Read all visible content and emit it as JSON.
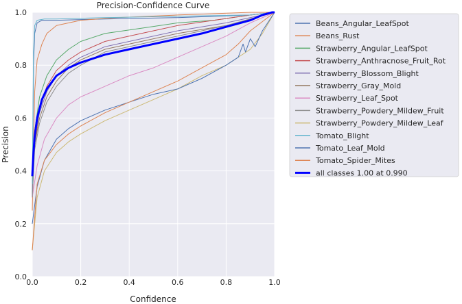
{
  "chart_data": {
    "type": "line",
    "title": "Precision-Confidence Curve",
    "xlabel": "Confidence",
    "ylabel": "Precision",
    "xlim": [
      0.0,
      1.0
    ],
    "ylim": [
      0.0,
      1.0
    ],
    "xticks": [
      "0.0",
      "0.2",
      "0.4",
      "0.6",
      "0.8",
      "1.0"
    ],
    "yticks": [
      "0.0",
      "0.2",
      "0.4",
      "0.6",
      "0.8",
      "1.0"
    ],
    "grid": true,
    "legend_position": "outside-right",
    "series": [
      {
        "name": "Beans_Angular_LeafSpot",
        "color": "#4c72b0",
        "width": 1,
        "x": [
          0.0,
          0.005,
          0.01,
          0.02,
          0.04,
          0.1,
          0.3,
          0.6,
          0.9,
          1.0
        ],
        "y": [
          0.3,
          0.8,
          0.92,
          0.96,
          0.97,
          0.97,
          0.975,
          0.98,
          0.99,
          1.0
        ]
      },
      {
        "name": "Beans_Rust",
        "color": "#dd8452",
        "width": 1,
        "x": [
          0.0,
          0.01,
          0.02,
          0.04,
          0.06,
          0.1,
          0.2,
          0.35,
          0.6,
          0.9,
          1.0
        ],
        "y": [
          0.25,
          0.7,
          0.82,
          0.88,
          0.92,
          0.95,
          0.97,
          0.98,
          0.99,
          1.0,
          1.0
        ]
      },
      {
        "name": "Strawberry_Angular_LeafSpot",
        "color": "#55a868",
        "width": 1,
        "x": [
          0.0,
          0.01,
          0.03,
          0.06,
          0.1,
          0.15,
          0.2,
          0.3,
          0.45,
          0.6,
          0.75,
          0.9,
          1.0
        ],
        "y": [
          0.35,
          0.55,
          0.68,
          0.76,
          0.82,
          0.86,
          0.89,
          0.92,
          0.94,
          0.96,
          0.97,
          0.99,
          1.0
        ]
      },
      {
        "name": "Strawberry_Anthracnose_Fruit_Rot",
        "color": "#c44e52",
        "width": 1,
        "x": [
          0.0,
          0.01,
          0.03,
          0.06,
          0.1,
          0.15,
          0.2,
          0.3,
          0.45,
          0.6,
          0.75,
          0.9,
          1.0
        ],
        "y": [
          0.3,
          0.5,
          0.63,
          0.72,
          0.78,
          0.82,
          0.85,
          0.89,
          0.92,
          0.95,
          0.97,
          0.99,
          1.0
        ]
      },
      {
        "name": "Strawberry_Blossom_Blight",
        "color": "#8172b3",
        "width": 1,
        "x": [
          0.0,
          0.01,
          0.03,
          0.06,
          0.1,
          0.15,
          0.2,
          0.3,
          0.45,
          0.6,
          0.8,
          1.0
        ],
        "y": [
          0.3,
          0.52,
          0.62,
          0.7,
          0.76,
          0.8,
          0.83,
          0.87,
          0.9,
          0.93,
          0.96,
          1.0
        ]
      },
      {
        "name": "Strawberry_Gray_Mold",
        "color": "#937860",
        "width": 1,
        "x": [
          0.0,
          0.01,
          0.03,
          0.06,
          0.1,
          0.15,
          0.2,
          0.3,
          0.45,
          0.6,
          0.8,
          1.0
        ],
        "y": [
          0.35,
          0.5,
          0.6,
          0.68,
          0.74,
          0.79,
          0.82,
          0.86,
          0.89,
          0.92,
          0.95,
          1.0
        ]
      },
      {
        "name": "Strawberry_Leaf_Spot",
        "color": "#da8bc3",
        "width": 1,
        "x": [
          0.0,
          0.02,
          0.05,
          0.1,
          0.15,
          0.2,
          0.3,
          0.4,
          0.5,
          0.6,
          0.7,
          0.8,
          0.9,
          1.0
        ],
        "y": [
          0.3,
          0.42,
          0.52,
          0.6,
          0.65,
          0.68,
          0.72,
          0.76,
          0.79,
          0.83,
          0.87,
          0.91,
          0.96,
          1.0
        ]
      },
      {
        "name": "Strawberry_Powdery_Mildew_Fruit",
        "color": "#8c8c8c",
        "width": 1,
        "x": [
          0.0,
          0.01,
          0.03,
          0.06,
          0.1,
          0.15,
          0.2,
          0.3,
          0.45,
          0.6,
          0.8,
          1.0
        ],
        "y": [
          0.3,
          0.48,
          0.58,
          0.66,
          0.72,
          0.77,
          0.8,
          0.85,
          0.88,
          0.91,
          0.95,
          1.0
        ]
      },
      {
        "name": "Strawberry_Powdery_Mildew_Leaf",
        "color": "#ccb974",
        "width": 1,
        "x": [
          0.0,
          0.02,
          0.05,
          0.1,
          0.15,
          0.2,
          0.3,
          0.4,
          0.5,
          0.6,
          0.7,
          0.8,
          0.9,
          0.95,
          1.0
        ],
        "y": [
          0.1,
          0.3,
          0.4,
          0.47,
          0.51,
          0.54,
          0.59,
          0.63,
          0.67,
          0.71,
          0.76,
          0.8,
          0.86,
          0.92,
          1.0
        ]
      },
      {
        "name": "Tomato_Blight",
        "color": "#64b5cd",
        "width": 1,
        "x": [
          0.0,
          0.005,
          0.01,
          0.02,
          0.05,
          0.1,
          0.3,
          0.6,
          0.9,
          1.0
        ],
        "y": [
          0.35,
          0.85,
          0.95,
          0.97,
          0.975,
          0.975,
          0.98,
          0.985,
          0.99,
          1.0
        ]
      },
      {
        "name": "Tomato_Leaf_Mold",
        "color": "#4c72b0",
        "width": 1,
        "x": [
          0.0,
          0.02,
          0.05,
          0.1,
          0.15,
          0.2,
          0.3,
          0.4,
          0.5,
          0.6,
          0.7,
          0.8,
          0.85,
          0.87,
          0.88,
          0.9,
          0.92,
          0.95,
          1.0
        ],
        "y": [
          0.2,
          0.34,
          0.44,
          0.52,
          0.56,
          0.59,
          0.63,
          0.66,
          0.69,
          0.71,
          0.75,
          0.8,
          0.83,
          0.88,
          0.85,
          0.9,
          0.87,
          0.93,
          1.0
        ]
      },
      {
        "name": "Tomato_Spider_Mites",
        "color": "#dd8452",
        "width": 1,
        "x": [
          0.0,
          0.02,
          0.05,
          0.1,
          0.15,
          0.2,
          0.3,
          0.4,
          0.5,
          0.6,
          0.7,
          0.8,
          0.85,
          0.9,
          1.0
        ],
        "y": [
          0.1,
          0.35,
          0.44,
          0.5,
          0.54,
          0.57,
          0.62,
          0.66,
          0.7,
          0.74,
          0.79,
          0.84,
          0.88,
          0.93,
          1.0
        ]
      },
      {
        "name": "all classes 1.00 at 0.990",
        "color": "#0000ff",
        "width": 3,
        "x": [
          0.0,
          0.005,
          0.01,
          0.02,
          0.04,
          0.06,
          0.1,
          0.15,
          0.2,
          0.3,
          0.4,
          0.5,
          0.6,
          0.7,
          0.8,
          0.9,
          0.95,
          0.99,
          1.0
        ],
        "y": [
          0.38,
          0.47,
          0.53,
          0.6,
          0.67,
          0.71,
          0.76,
          0.79,
          0.81,
          0.84,
          0.86,
          0.88,
          0.9,
          0.92,
          0.945,
          0.97,
          0.99,
          1.0,
          1.0
        ]
      }
    ]
  }
}
